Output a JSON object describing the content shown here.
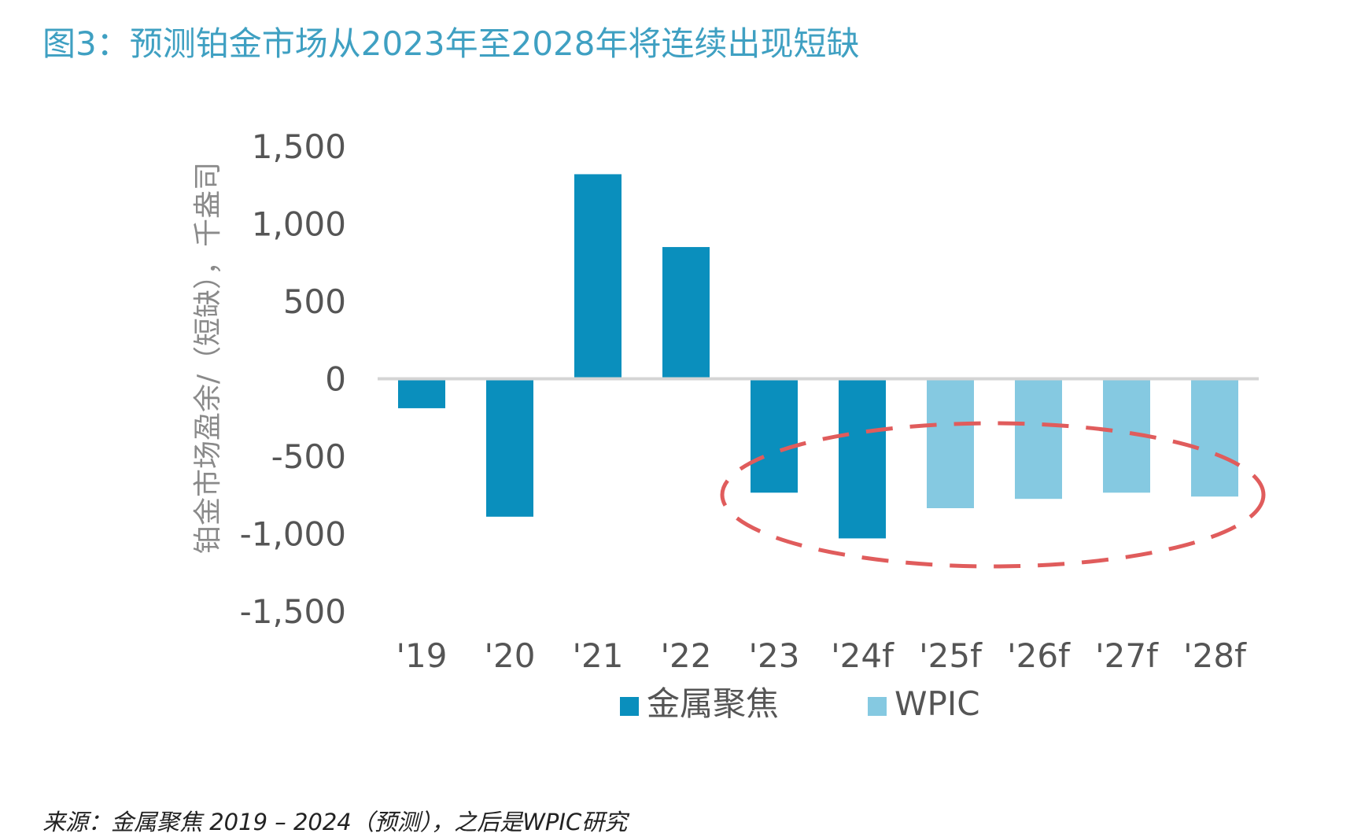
{
  "figure": {
    "title": "图3：预测铂金市场从2023年至2028年将连续出现短缺",
    "source": "来源：金属聚焦 2019 – 2024（预测），之后是WPIC研究"
  },
  "chart_data": {
    "type": "bar",
    "title": "",
    "ylabel": "铂金市场盈余/（短缺），千盎司",
    "xlabel": "",
    "ylim": [
      -1500,
      1500
    ],
    "yticks": [
      1500,
      1000,
      500,
      0,
      -500,
      -1000,
      -1500
    ],
    "ytick_labels": [
      "1,500",
      "1,000",
      "500",
      "0",
      "-500",
      "-1,000",
      "-1,500"
    ],
    "categories": [
      "'19",
      "'20",
      "'21",
      "'22",
      "'23",
      "'24f",
      "'25f",
      "'26f",
      "'27f",
      "'28f"
    ],
    "values": [
      -190,
      -890,
      1320,
      850,
      -735,
      -1030,
      -835,
      -775,
      -735,
      -760
    ],
    "series": [
      {
        "name": "金属聚焦",
        "color": "#0a8fbd",
        "categories": [
          "'19",
          "'20",
          "'21",
          "'22",
          "'23",
          "'24f"
        ]
      },
      {
        "name": "WPIC",
        "color": "#85c9e1",
        "categories": [
          "'25f",
          "'26f",
          "'27f",
          "'28f"
        ]
      }
    ],
    "legend_position": "bottom",
    "grid": false,
    "annotation": {
      "type": "dashed-ellipse",
      "color": "#e05c5c",
      "highlights": [
        "'23",
        "'24f",
        "'25f",
        "'26f",
        "'27f",
        "'28f"
      ]
    }
  }
}
